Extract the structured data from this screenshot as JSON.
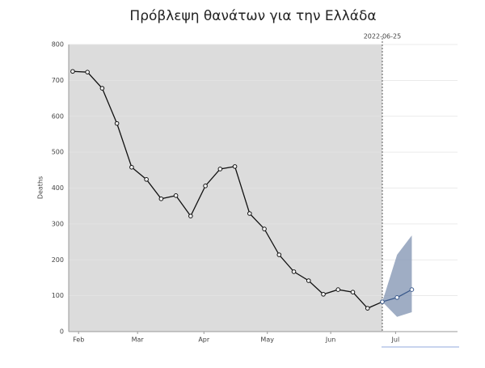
{
  "chart_data": {
    "type": "line",
    "title": "Πρόβλεψη θανάτων για την Ελλάδα",
    "y_label": "Deaths",
    "ylim": [
      0,
      800
    ],
    "yticks": [
      0,
      100,
      200,
      300,
      400,
      500,
      600,
      700,
      800
    ],
    "xlim": [
      -0.27,
      26.1
    ],
    "xticks": [
      {
        "value": 0.4,
        "label": "Feb"
      },
      {
        "value": 4.4,
        "label": "Mar"
      },
      {
        "value": 8.9,
        "label": "Apr"
      },
      {
        "value": 13.2,
        "label": "May"
      },
      {
        "value": 17.5,
        "label": "Jun"
      },
      {
        "value": 21.9,
        "label": "Jul"
      }
    ],
    "grid": true,
    "annotation": {
      "text": "2022-06-25",
      "x": 21
    },
    "series": [
      {
        "color": "#111111",
        "x": [
          0,
          1,
          2,
          3,
          4,
          5,
          6,
          7,
          8,
          9,
          10,
          11,
          12,
          13,
          14,
          15,
          16,
          17,
          18,
          19,
          20,
          21
        ],
        "values": [
          725,
          723,
          678,
          580,
          458,
          424,
          370,
          379,
          322,
          406,
          453,
          460,
          329,
          286,
          214,
          167,
          142,
          104,
          117,
          110,
          65,
          83
        ]
      },
      {
        "color": "#3b5a8c",
        "band_color": "#8e9fba",
        "x": [
          21,
          22,
          23
        ],
        "values": [
          83,
          95,
          117
        ],
        "lower": [
          83,
          41,
          54
        ],
        "upper": [
          83,
          214,
          268
        ]
      }
    ]
  }
}
